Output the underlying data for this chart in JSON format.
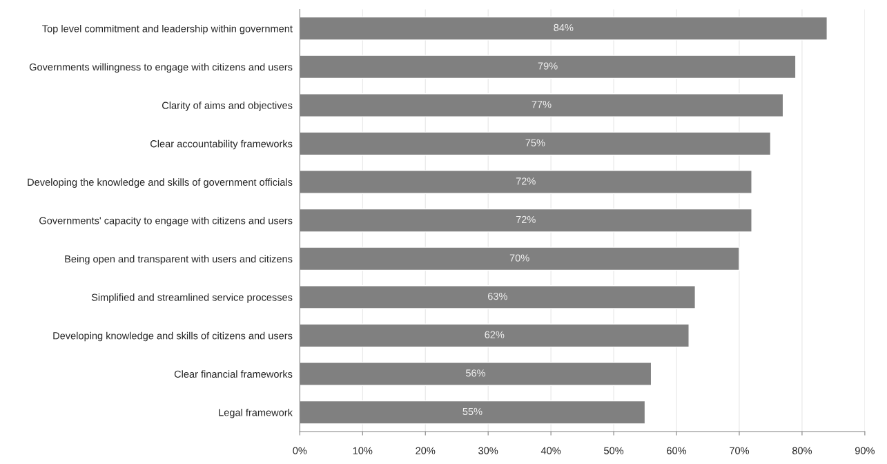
{
  "chart_data": {
    "type": "bar",
    "orientation": "horizontal",
    "categories": [
      "Top level commitment and leadership within government",
      "Governments willingness to engage with citizens and users",
      "Clarity of aims and objectives",
      "Clear accountability frameworks",
      "Developing the knowledge and skills of government officials",
      "Governments' capacity to engage with citizens and users",
      "Being open and transparent with users and citizens",
      "Simplified and streamlined service processes",
      "Developing knowledge and skills of citizens and users",
      "Clear financial frameworks",
      "Legal framework"
    ],
    "values": [
      84,
      79,
      77,
      75,
      72,
      72,
      70,
      63,
      62,
      56,
      55
    ],
    "value_labels": [
      "84%",
      "79%",
      "77%",
      "75%",
      "72%",
      "72%",
      "70%",
      "63%",
      "62%",
      "56%",
      "55%"
    ],
    "color": "#808080",
    "xlim": [
      0,
      90
    ],
    "xticks": [
      {
        "value": 0,
        "label": "0%"
      },
      {
        "value": 10,
        "label": "10%"
      },
      {
        "value": 20,
        "label": "20%"
      },
      {
        "value": 30,
        "label": "30%"
      },
      {
        "value": 40,
        "label": "40%"
      },
      {
        "value": 50,
        "label": "50%"
      },
      {
        "value": 60,
        "label": "60%"
      },
      {
        "value": 70,
        "label": "70%"
      },
      {
        "value": 80,
        "label": "80%"
      },
      {
        "value": 90,
        "label": "90%"
      }
    ],
    "grid": "x"
  }
}
